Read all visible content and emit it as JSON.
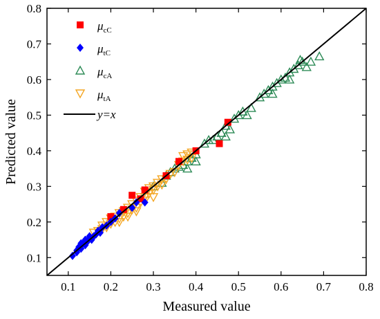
{
  "chart_data": {
    "type": "scatter",
    "title": "",
    "xlabel": "Measured value",
    "ylabel": "Predicted value",
    "xlim": [
      0.05,
      0.8
    ],
    "ylim": [
      0.05,
      0.8
    ],
    "xticks": [
      "0.1",
      "0.2",
      "0.3",
      "0.4",
      "0.5",
      "0.6",
      "0.7",
      "0.8"
    ],
    "yticks": [
      "0.1",
      "0.2",
      "0.3",
      "0.4",
      "0.5",
      "0.6",
      "0.7",
      "0.8"
    ],
    "grid": false,
    "legend_position": "top-left",
    "series": [
      {
        "name": "μcC",
        "symbol": "μ",
        "subscript": "cC",
        "marker": "square",
        "color": "#ff0000",
        "points": [
          [
            0.23,
            0.235
          ],
          [
            0.25,
            0.275
          ],
          [
            0.28,
            0.29
          ],
          [
            0.33,
            0.33
          ],
          [
            0.36,
            0.37
          ],
          [
            0.4,
            0.4
          ],
          [
            0.455,
            0.42
          ],
          [
            0.475,
            0.48
          ],
          [
            0.2,
            0.215
          ],
          [
            0.27,
            0.265
          ]
        ]
      },
      {
        "name": "μtC",
        "symbol": "μ",
        "subscript": "tC",
        "marker": "diamond",
        "color": "#0000ff",
        "points": [
          [
            0.11,
            0.105
          ],
          [
            0.12,
            0.12
          ],
          [
            0.125,
            0.13
          ],
          [
            0.13,
            0.125
          ],
          [
            0.135,
            0.14
          ],
          [
            0.14,
            0.135
          ],
          [
            0.14,
            0.15
          ],
          [
            0.145,
            0.145
          ],
          [
            0.15,
            0.155
          ],
          [
            0.155,
            0.15
          ],
          [
            0.16,
            0.16
          ],
          [
            0.165,
            0.165
          ],
          [
            0.17,
            0.175
          ],
          [
            0.175,
            0.17
          ],
          [
            0.18,
            0.185
          ],
          [
            0.19,
            0.19
          ],
          [
            0.2,
            0.2
          ],
          [
            0.21,
            0.21
          ],
          [
            0.22,
            0.225
          ],
          [
            0.25,
            0.24
          ],
          [
            0.26,
            0.255
          ],
          [
            0.28,
            0.255
          ],
          [
            0.12,
            0.115
          ],
          [
            0.13,
            0.14
          ],
          [
            0.15,
            0.16
          ]
        ]
      },
      {
        "name": "μcA",
        "symbol": "μ",
        "subscript": "cA",
        "marker": "triangle",
        "color": "#2e8b57",
        "points": [
          [
            0.3,
            0.3
          ],
          [
            0.32,
            0.31
          ],
          [
            0.33,
            0.33
          ],
          [
            0.34,
            0.34
          ],
          [
            0.35,
            0.35
          ],
          [
            0.36,
            0.355
          ],
          [
            0.37,
            0.36
          ],
          [
            0.38,
            0.37
          ],
          [
            0.39,
            0.38
          ],
          [
            0.4,
            0.39
          ],
          [
            0.4,
            0.37
          ],
          [
            0.42,
            0.42
          ],
          [
            0.44,
            0.43
          ],
          [
            0.45,
            0.44
          ],
          [
            0.46,
            0.45
          ],
          [
            0.47,
            0.47
          ],
          [
            0.48,
            0.46
          ],
          [
            0.49,
            0.49
          ],
          [
            0.5,
            0.5
          ],
          [
            0.51,
            0.51
          ],
          [
            0.53,
            0.52
          ],
          [
            0.55,
            0.55
          ],
          [
            0.56,
            0.56
          ],
          [
            0.57,
            0.57
          ],
          [
            0.58,
            0.58
          ],
          [
            0.59,
            0.59
          ],
          [
            0.6,
            0.6
          ],
          [
            0.61,
            0.605
          ],
          [
            0.62,
            0.62
          ],
          [
            0.63,
            0.63
          ],
          [
            0.64,
            0.64
          ],
          [
            0.645,
            0.655
          ],
          [
            0.65,
            0.65
          ],
          [
            0.66,
            0.635
          ],
          [
            0.67,
            0.65
          ],
          [
            0.69,
            0.665
          ],
          [
            0.62,
            0.6
          ],
          [
            0.58,
            0.56
          ],
          [
            0.52,
            0.5
          ],
          [
            0.47,
            0.44
          ],
          [
            0.43,
            0.43
          ],
          [
            0.38,
            0.35
          ]
        ]
      },
      {
        "name": "μtA",
        "symbol": "μ",
        "subscript": "tA",
        "marker": "triangle-down",
        "color": "#f4a623",
        "points": [
          [
            0.16,
            0.17
          ],
          [
            0.17,
            0.175
          ],
          [
            0.18,
            0.18
          ],
          [
            0.18,
            0.19
          ],
          [
            0.19,
            0.185
          ],
          [
            0.19,
            0.2
          ],
          [
            0.2,
            0.195
          ],
          [
            0.2,
            0.21
          ],
          [
            0.21,
            0.2
          ],
          [
            0.21,
            0.215
          ],
          [
            0.22,
            0.21
          ],
          [
            0.22,
            0.225
          ],
          [
            0.23,
            0.215
          ],
          [
            0.23,
            0.23
          ],
          [
            0.24,
            0.225
          ],
          [
            0.24,
            0.24
          ],
          [
            0.25,
            0.235
          ],
          [
            0.25,
            0.25
          ],
          [
            0.26,
            0.24
          ],
          [
            0.26,
            0.26
          ],
          [
            0.27,
            0.255
          ],
          [
            0.27,
            0.27
          ],
          [
            0.28,
            0.27
          ],
          [
            0.28,
            0.285
          ],
          [
            0.29,
            0.28
          ],
          [
            0.29,
            0.295
          ],
          [
            0.3,
            0.29
          ],
          [
            0.3,
            0.3
          ],
          [
            0.31,
            0.3
          ],
          [
            0.31,
            0.31
          ],
          [
            0.32,
            0.305
          ],
          [
            0.32,
            0.32
          ],
          [
            0.33,
            0.32
          ],
          [
            0.34,
            0.335
          ],
          [
            0.35,
            0.34
          ],
          [
            0.36,
            0.36
          ],
          [
            0.37,
            0.37
          ],
          [
            0.37,
            0.385
          ],
          [
            0.38,
            0.375
          ],
          [
            0.38,
            0.39
          ],
          [
            0.39,
            0.38
          ],
          [
            0.39,
            0.395
          ],
          [
            0.22,
            0.2
          ],
          [
            0.24,
            0.215
          ],
          [
            0.26,
            0.23
          ],
          [
            0.28,
            0.26
          ],
          [
            0.3,
            0.27
          ]
        ]
      }
    ],
    "reference_line": {
      "label": "y=x",
      "color": "#000000",
      "from": [
        0.05,
        0.05
      ],
      "to": [
        0.8,
        0.8
      ]
    }
  }
}
